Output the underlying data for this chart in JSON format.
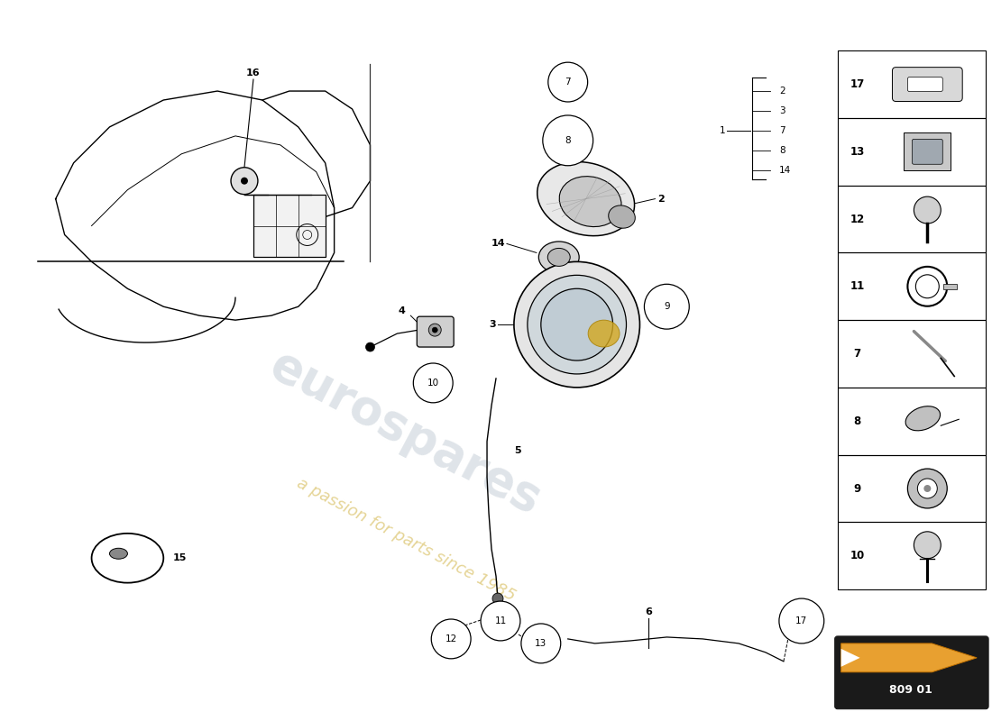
{
  "bg_color": "#ffffff",
  "watermark_text1": "eurospares",
  "watermark_text2": "a passion for parts since 1985",
  "part_ref": "809 01",
  "side_parts": [
    "17",
    "13",
    "12",
    "11",
    "7",
    "8",
    "9",
    "10"
  ]
}
